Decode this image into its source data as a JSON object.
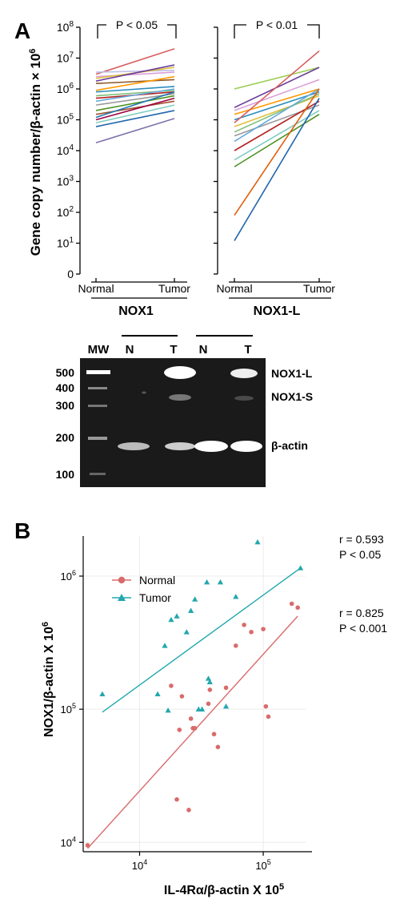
{
  "panel_a": {
    "letter": "A",
    "ylabel": "Gene copy number/β-actin × 10",
    "ylabel_sup": "6",
    "y_ticks": [
      {
        "base": "0",
        "exp": ""
      },
      {
        "base": "10",
        "exp": "1"
      },
      {
        "base": "10",
        "exp": "2"
      },
      {
        "base": "10",
        "exp": "3"
      },
      {
        "base": "10",
        "exp": "4"
      },
      {
        "base": "10",
        "exp": "5"
      },
      {
        "base": "10",
        "exp": "6"
      },
      {
        "base": "10",
        "exp": "7"
      },
      {
        "base": "10",
        "exp": "8"
      }
    ],
    "x_ticks": [
      "Normal",
      "Tumor"
    ]
  },
  "gel": {
    "lane_labels": [
      "MW",
      "N",
      "T",
      "N",
      "T"
    ],
    "ladder_top": [
      "500",
      "400",
      "300"
    ],
    "ladder_bottom": [
      "200",
      "100"
    ],
    "band_labels": [
      "NOX1-L",
      "NOX1-S",
      "β-actin"
    ]
  },
  "panel_b": {
    "letter": "B",
    "ylabel": "NOX1/β-actin X 10",
    "ylabel_sup": "6",
    "xlabel": "IL-4Rα/β-actin X 10",
    "xlabel_sup": "5",
    "x_ticks": [
      {
        "base": "10",
        "exp": "4"
      },
      {
        "base": "10",
        "exp": "5"
      }
    ],
    "y_ticks": [
      {
        "base": "10",
        "exp": "4"
      },
      {
        "base": "10",
        "exp": "5"
      },
      {
        "base": "10",
        "exp": "6"
      }
    ],
    "stats": [
      {
        "r": "r = 0.593",
        "p": "P < 0.05"
      },
      {
        "r": "r = 0.825",
        "p": "P < 0.001"
      }
    ],
    "colors": {
      "normal": "#d96b6b",
      "tumor": "#22a8ad"
    }
  },
  "chart_data": [
    {
      "type": "line",
      "title": "NOX1",
      "xlabel": "NOX1",
      "ylabel": "Gene copy number/β-actin × 10^6",
      "y_scale": "log",
      "ylim": [
        1,
        100000000
      ],
      "categories": [
        "Normal",
        "Tumor"
      ],
      "significance": "P < 0.05",
      "series": [
        {
          "values": [
            3000000,
            20000000
          ],
          "color": "#d95f5f"
        },
        {
          "values": [
            2500000,
            3500000
          ],
          "color": "#d8a0d8"
        },
        {
          "values": [
            3500000,
            4000000
          ],
          "color": "#c0c0e8"
        },
        {
          "values": [
            2200000,
            5000000
          ],
          "color": "#e0c040"
        },
        {
          "values": [
            1800000,
            6000000
          ],
          "color": "#6a3d9a"
        },
        {
          "values": [
            1500000,
            2000000
          ],
          "color": "#8b5a2b"
        },
        {
          "values": [
            900000,
            2500000
          ],
          "color": "#ff9900"
        },
        {
          "values": [
            800000,
            1200000
          ],
          "color": "#2b8cbe"
        },
        {
          "values": [
            600000,
            900000
          ],
          "color": "#7fbf7b"
        },
        {
          "values": [
            500000,
            800000
          ],
          "color": "#b22222"
        },
        {
          "values": [
            400000,
            1000000
          ],
          "color": "#66aadd"
        },
        {
          "values": [
            300000,
            700000
          ],
          "color": "#999999"
        },
        {
          "values": [
            200000,
            600000
          ],
          "color": "#4d9221"
        },
        {
          "values": [
            150000,
            400000
          ],
          "color": "#a0522d"
        },
        {
          "values": [
            120000,
            800000
          ],
          "color": "#1f78b4"
        },
        {
          "values": [
            100000,
            500000
          ],
          "color": "#9e0142"
        },
        {
          "values": [
            80000,
            300000
          ],
          "color": "#80cdc1"
        },
        {
          "values": [
            60000,
            200000
          ],
          "color": "#2166ac"
        },
        {
          "values": [
            18000,
            110000
          ],
          "color": "#8073ac"
        }
      ]
    },
    {
      "type": "line",
      "title": "NOX1-L",
      "xlabel": "NOX1-L",
      "ylabel": "Gene copy number/β-actin × 10^6",
      "y_scale": "log",
      "ylim": [
        1,
        100000000
      ],
      "categories": [
        "Normal",
        "Tumor"
      ],
      "significance": "P < 0.01",
      "series": [
        {
          "values": [
            1000000,
            5000000
          ],
          "color": "#9acd52"
        },
        {
          "values": [
            250000,
            5000000
          ],
          "color": "#6a3d9a"
        },
        {
          "values": [
            200000,
            2000000
          ],
          "color": "#d8a0d8"
        },
        {
          "values": [
            150000,
            1000000
          ],
          "color": "#ff9900"
        },
        {
          "values": [
            100000,
            800000
          ],
          "color": "#2b8cbe"
        },
        {
          "values": [
            80000,
            17000000
          ],
          "color": "#d95f5f"
        },
        {
          "values": [
            60000,
            600000
          ],
          "color": "#e0c040"
        },
        {
          "values": [
            40000,
            700000
          ],
          "color": "#7fbf7b"
        },
        {
          "values": [
            30000,
            300000
          ],
          "color": "#999999"
        },
        {
          "values": [
            20000,
            1000000
          ],
          "color": "#66aadd"
        },
        {
          "values": [
            10000,
            400000
          ],
          "color": "#b22222"
        },
        {
          "values": [
            5000,
            200000
          ],
          "color": "#80cdc1"
        },
        {
          "values": [
            3000,
            150000
          ],
          "color": "#4d9221"
        },
        {
          "values": [
            80,
            1000000
          ],
          "color": "#e06010"
        },
        {
          "values": [
            12,
            500000
          ],
          "color": "#2166ac"
        }
      ]
    },
    {
      "type": "scatter",
      "xlabel": "IL-4Rα/β-actin X 10^5",
      "ylabel": "NOX1/β-actin X 10^6",
      "x_scale": "log",
      "y_scale": "log",
      "xlim": [
        3500,
        220000
      ],
      "ylim": [
        8500,
        2000000
      ],
      "legend": "upper-left",
      "grid": true,
      "series": [
        {
          "name": "Normal",
          "marker": "circle",
          "color": "#d96b6b",
          "points": [
            [
              3800,
              9500
            ],
            [
              18000,
              150000
            ],
            [
              20000,
              21000
            ],
            [
              21000,
              70000
            ],
            [
              22000,
              125000
            ],
            [
              25000,
              17500
            ],
            [
              26000,
              85000
            ],
            [
              27000,
              72000
            ],
            [
              28000,
              72000
            ],
            [
              36000,
              110000
            ],
            [
              37000,
              140000
            ],
            [
              40000,
              65000
            ],
            [
              43000,
              52000
            ],
            [
              50000,
              145000
            ],
            [
              60000,
              300000
            ],
            [
              70000,
              430000
            ],
            [
              80000,
              380000
            ],
            [
              100000,
              400000
            ],
            [
              105000,
              105000
            ],
            [
              110000,
              88000
            ],
            [
              170000,
              620000
            ],
            [
              190000,
              580000
            ]
          ],
          "fit_line": [
            [
              3800,
              9000
            ],
            [
              190000,
              500000
            ]
          ]
        },
        {
          "name": "Tumor",
          "marker": "triangle",
          "color": "#22a8ad",
          "points": [
            [
              5000,
              130000
            ],
            [
              14000,
              130000
            ],
            [
              16000,
              300000
            ],
            [
              17000,
              98000
            ],
            [
              18000,
              470000
            ],
            [
              20000,
              500000
            ],
            [
              24000,
              380000
            ],
            [
              26000,
              550000
            ],
            [
              28000,
              670000
            ],
            [
              30000,
              100000
            ],
            [
              32000,
              100000
            ],
            [
              35000,
              900000
            ],
            [
              36000,
              170000
            ],
            [
              37000,
              160000
            ],
            [
              45000,
              900000
            ],
            [
              50000,
              105000
            ],
            [
              60000,
              700000
            ],
            [
              90000,
              1800000
            ],
            [
              200000,
              1150000
            ]
          ],
          "fit_line": [
            [
              5000,
              95000
            ],
            [
              200000,
              1150000
            ]
          ]
        }
      ]
    }
  ]
}
